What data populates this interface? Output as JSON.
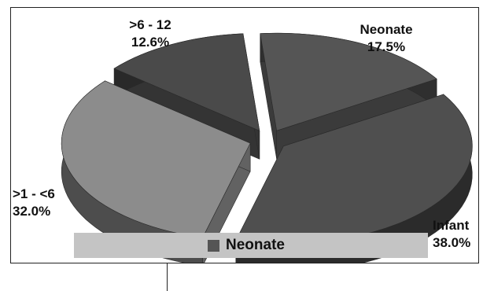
{
  "chart_data": {
    "type": "pie",
    "style": "3d-exploded",
    "slices": [
      {
        "label": "Neonate",
        "value": 17.5,
        "value_text": "17.5%",
        "color": "#555555"
      },
      {
        "label": "Infant",
        "value": 38.0,
        "value_text": "38.0%",
        "color": "#4f4f4f"
      },
      {
        "label": ">1 - <6",
        "value": 32.0,
        "value_text": "32.0%",
        "color": "#8c8c8c"
      },
      {
        "label": ">6 - 12",
        "value": 12.6,
        "value_text": "12.6%",
        "color": "#4a4a4a"
      }
    ],
    "legend": {
      "placement": "bottom",
      "entries": [
        {
          "label": "Neonate",
          "color": "#555555"
        }
      ]
    }
  },
  "colors": {
    "legend_background": "#c4c4c4",
    "border": "#222222"
  }
}
